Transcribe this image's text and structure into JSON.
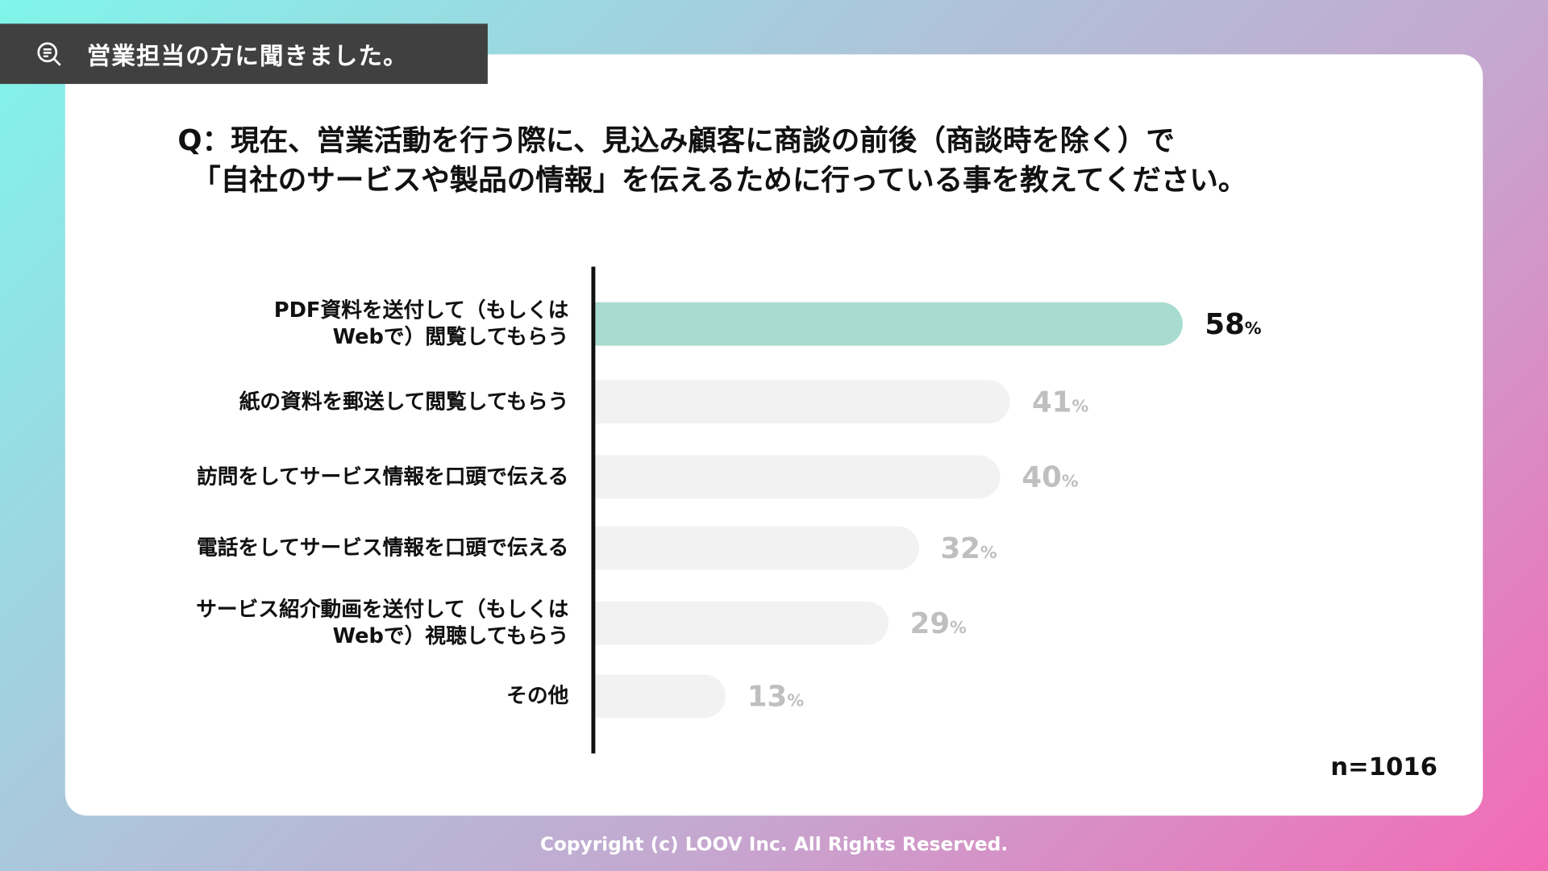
{
  "header": {
    "tag": "営業担当の方に聞きました。",
    "icon": "search-list-icon"
  },
  "question": "Q：現在、営業活動を行う際に、見込み顧客に商談の前後（商談時を除く）で\n　「自社のサービスや製品の情報」を伝えるために行っている事を教えてください。",
  "chart_data": {
    "type": "bar",
    "orientation": "horizontal",
    "categories": [
      "PDF資料を送付して（もしくは\nWebで）閲覧してもらう",
      "紙の資料を郵送して閲覧してもらう",
      "訪問をしてサービス情報を口頭で伝える",
      "電話をしてサービス情報を口頭で伝える",
      "サービス紹介動画を送付して（もしくは\nWebで）視聴してもらう",
      "その他"
    ],
    "values": [
      58,
      41,
      40,
      32,
      29,
      13
    ],
    "unit": "%",
    "highlight_color": "#a8dcd1",
    "bar_color": "#f2f2f2",
    "highlight_label_color": "#111111",
    "label_color": "#bfbfbf"
  },
  "sample_size": "n=1016",
  "footer": "Copyright (c) LOOV Inc. All Rights Reserved."
}
